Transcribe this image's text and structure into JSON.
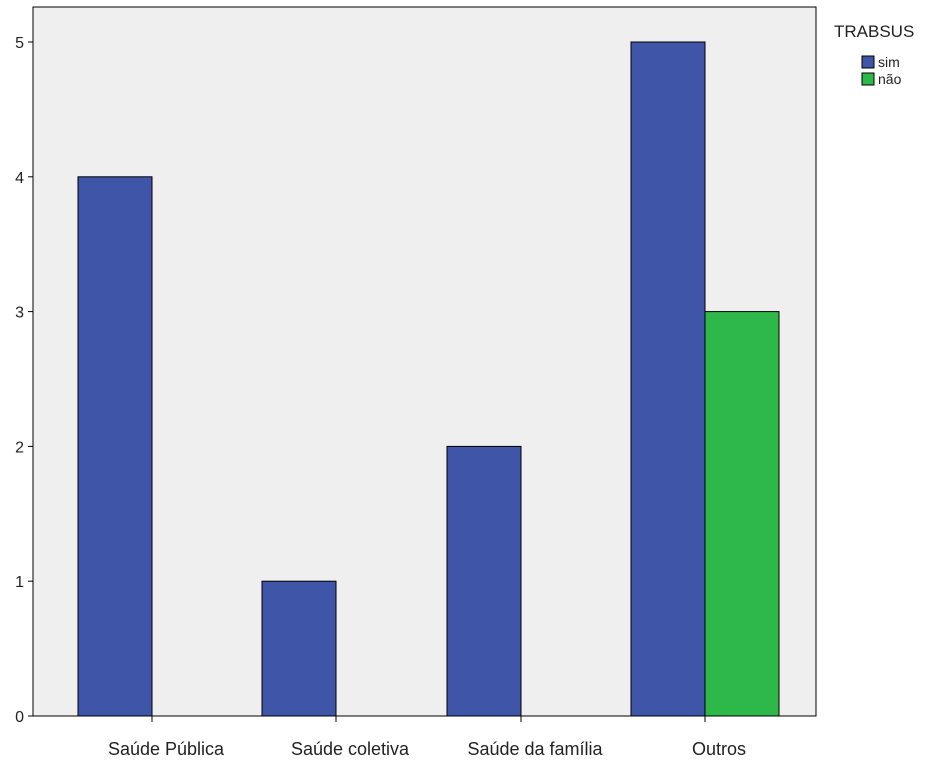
{
  "chart_data": {
    "type": "bar",
    "categories": [
      "Saúde Pública",
      "Saúde coletiva",
      "Saúde da família",
      "Outros"
    ],
    "series": [
      {
        "name": "sim",
        "values": [
          4,
          1,
          2,
          5
        ]
      },
      {
        "name": "não",
        "values": [
          0,
          0,
          0,
          3
        ]
      }
    ],
    "ylim": [
      0,
      5
    ],
    "yticks": [
      "0",
      "1",
      "2",
      "3",
      "4",
      "5"
    ],
    "xlabel": "",
    "ylabel": "",
    "legend_title": "TRABSUS",
    "legend_position": "right",
    "grid": false,
    "colors": {
      "sim": "#3f56a8",
      "não": "#2fb84a",
      "plot_background": "#efefef",
      "axis": "#000000"
    }
  }
}
